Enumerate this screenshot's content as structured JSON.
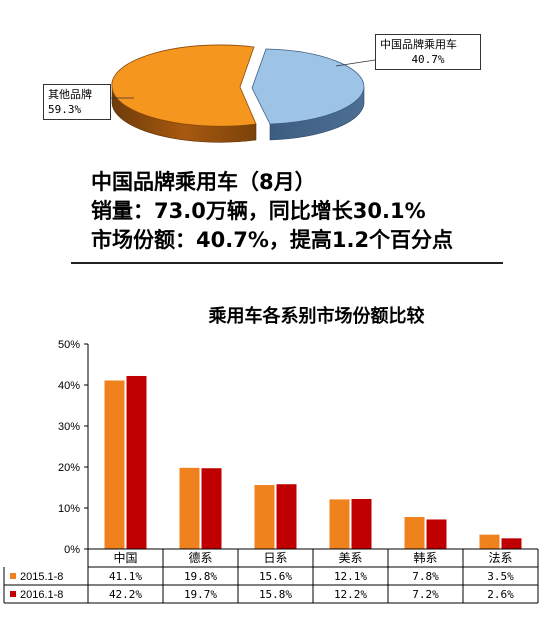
{
  "pie": {
    "slices": [
      {
        "name": "中国品牌乘用车",
        "pct_label": "40.7%",
        "value": 40.7,
        "color": "#9dc3e6"
      },
      {
        "name": "其他品牌",
        "pct_label": "59.3%",
        "value": 59.3,
        "color": "#f5961e"
      }
    ]
  },
  "summary": {
    "line1": "中国品牌乘用车（8月）",
    "line2": "销量：73.0万辆，同比增长30.1%",
    "line3": "市场份额：40.7%，提高1.2个百分点"
  },
  "chart_data": {
    "type": "bar",
    "title": "乘用车各系别市场份额比较",
    "categories": [
      "中国",
      "德系",
      "日系",
      "美系",
      "韩系",
      "法系"
    ],
    "ylim": [
      0,
      50
    ],
    "yticks": [
      "0%",
      "10%",
      "20%",
      "30%",
      "40%",
      "50%"
    ],
    "grid": false,
    "legend": "table-below",
    "series": [
      {
        "name": "2015.1-8",
        "color": "#f0821e",
        "values": [
          41.1,
          19.8,
          15.6,
          12.1,
          7.8,
          3.5
        ],
        "labels": [
          "41.1%",
          "19.8%",
          "15.6%",
          "12.1%",
          "7.8%",
          "3.5%"
        ]
      },
      {
        "name": "2016.1-8",
        "color": "#c00000",
        "values": [
          42.2,
          19.7,
          15.8,
          12.2,
          7.2,
          2.6
        ],
        "labels": [
          "42.2%",
          "19.7%",
          "15.8%",
          "12.2%",
          "7.2%",
          "2.6%"
        ]
      }
    ]
  }
}
